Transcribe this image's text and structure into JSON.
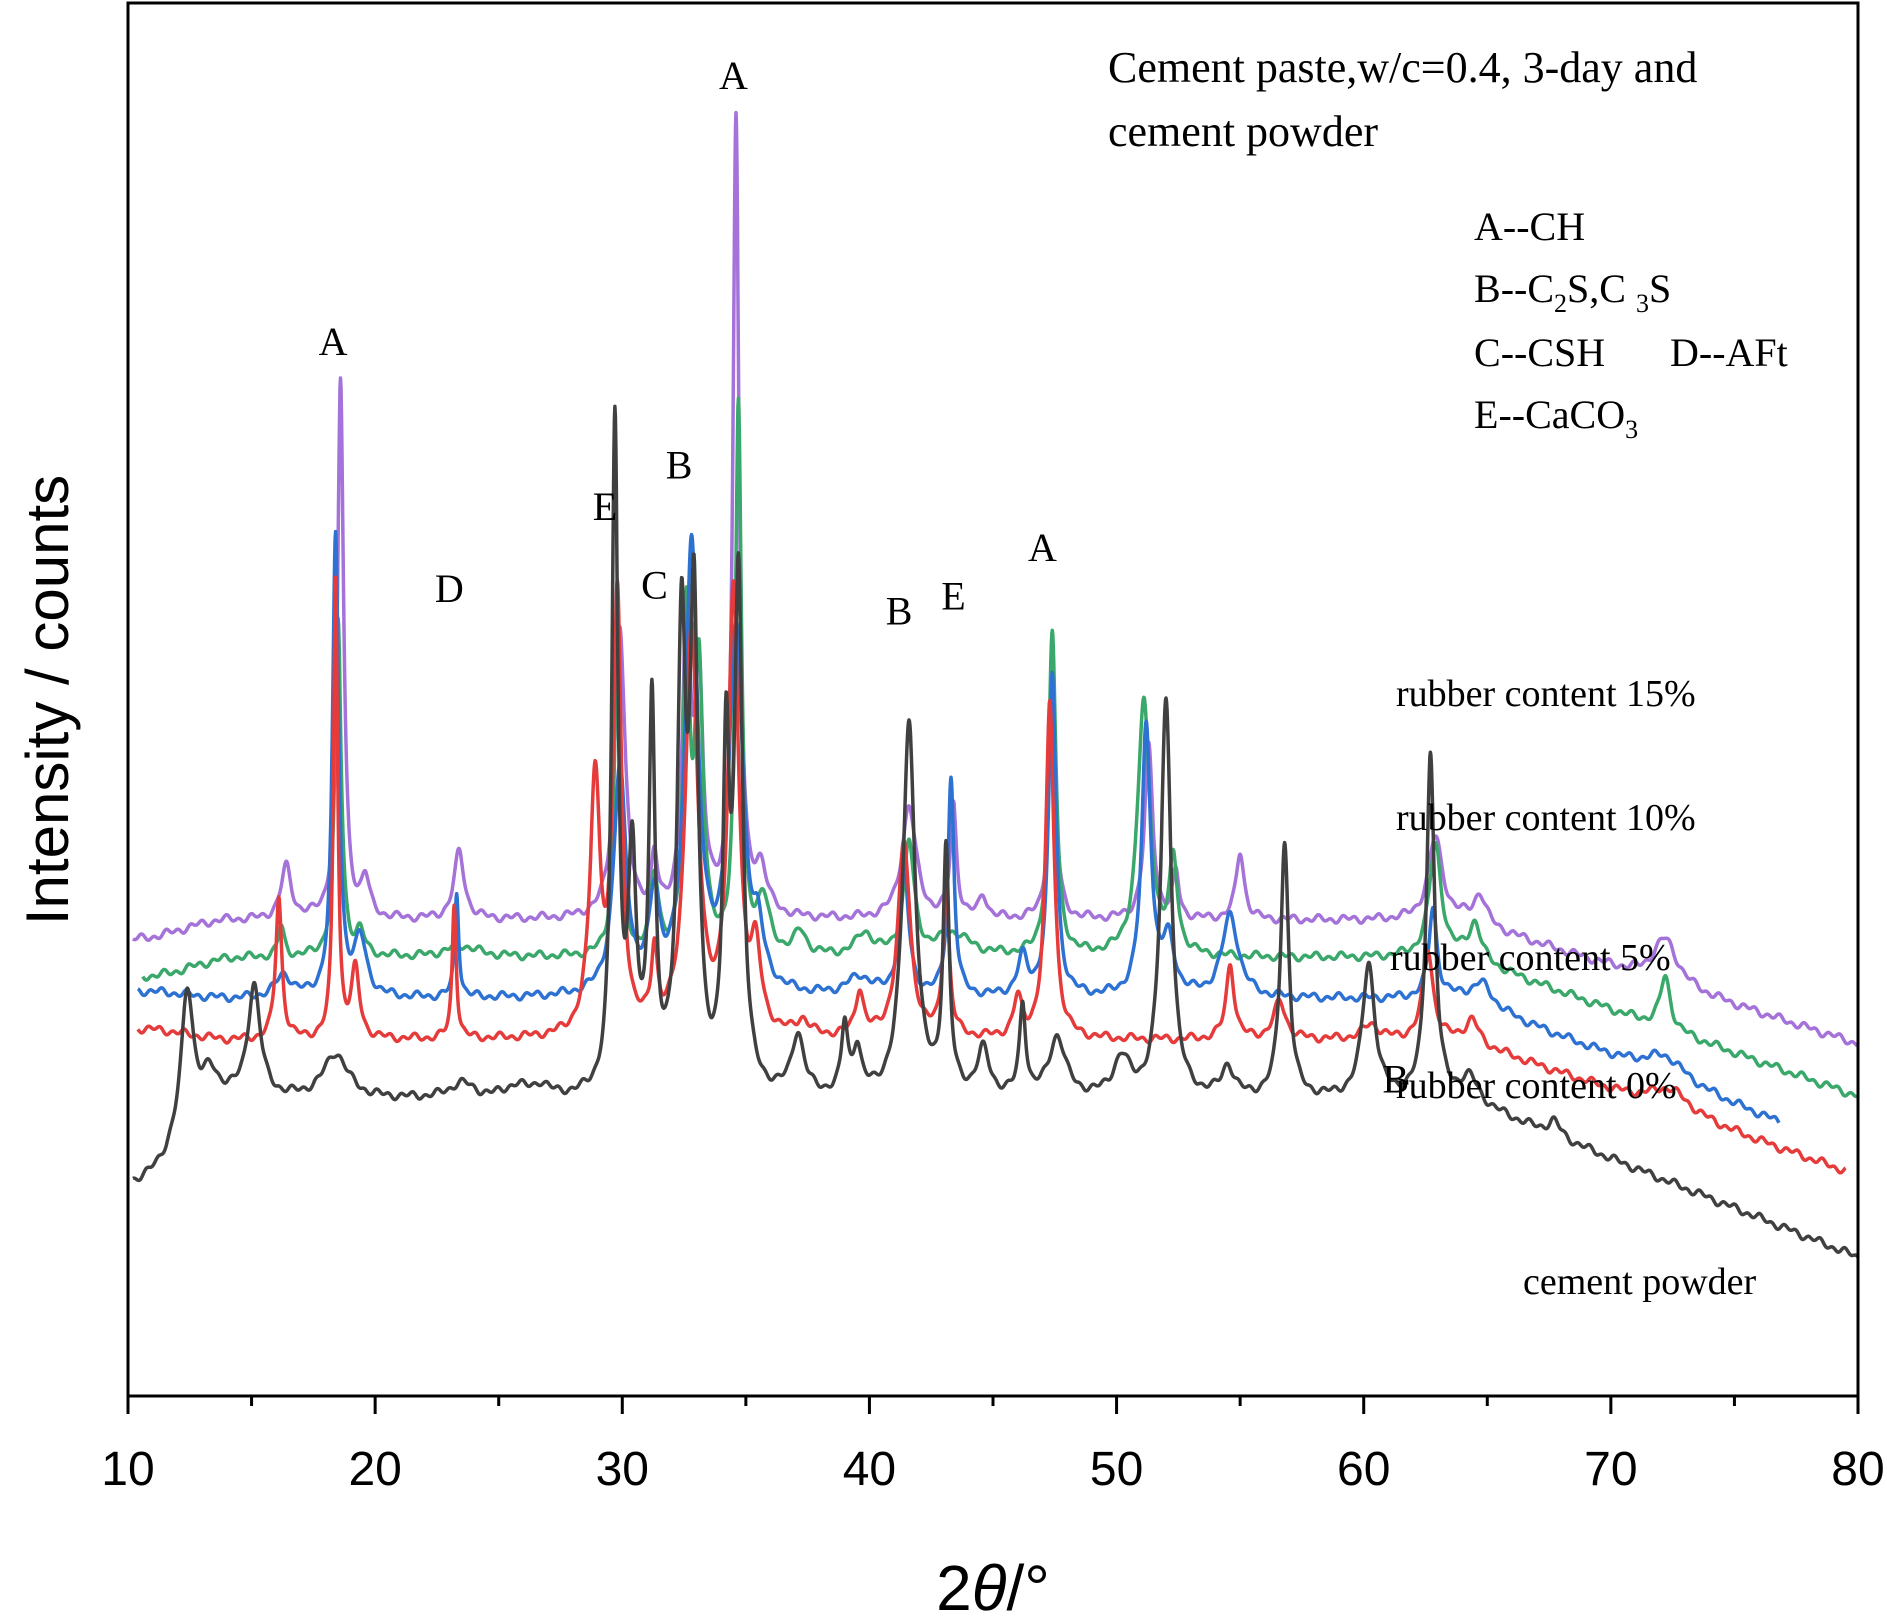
{
  "chart_data": {
    "type": "line",
    "title": "Cement paste,w/c=0.4, 3-day and",
    "title_line2": "cement powder",
    "xlabel_prefix": "2",
    "xlabel_symbol": "θ",
    "xlabel_suffix": "/°",
    "ylabel": "Intensity / counts",
    "xlim": [
      10,
      80
    ],
    "x_ticks": [
      10,
      20,
      30,
      40,
      50,
      60,
      70,
      80
    ],
    "y_ticks_shown": false,
    "grid": false,
    "legend": {
      "placement": "top-right",
      "entries": [
        {
          "letter": "A",
          "phase": "CH"
        },
        {
          "letter": "B",
          "phase": "C2S,C3S"
        },
        {
          "letter": "C",
          "phase": "CSH"
        },
        {
          "letter": "D",
          "phase": "AFt"
        },
        {
          "letter": "E",
          "phase": "CaCO3"
        }
      ]
    },
    "series": [
      {
        "name": "rubber content 15%",
        "color": "#a472d8",
        "baseline": 635,
        "start_x": 10.2,
        "end_x": 80,
        "start_y": 610,
        "end_y": 470,
        "peaks": [
          [
            16.4,
            70,
            0.25
          ],
          [
            18.6,
            720,
            0.15
          ],
          [
            19.6,
            50,
            0.2
          ],
          [
            23.4,
            90,
            0.25
          ],
          [
            29.9,
            390,
            0.25
          ],
          [
            31.3,
            70,
            0.15
          ],
          [
            32.6,
            380,
            0.2
          ],
          [
            33.1,
            300,
            0.2
          ],
          [
            34.6,
            1060,
            0.15
          ],
          [
            35.6,
            60,
            0.3
          ],
          [
            41.6,
            150,
            0.35
          ],
          [
            43.4,
            150,
            0.15
          ],
          [
            44.6,
            30,
            0.2
          ],
          [
            47.4,
            350,
            0.15
          ],
          [
            51.3,
            230,
            0.2
          ],
          [
            52.4,
            60,
            0.15
          ],
          [
            55.0,
            90,
            0.2
          ],
          [
            62.9,
            110,
            0.35
          ],
          [
            64.7,
            40,
            0.3
          ],
          [
            72.2,
            60,
            0.6
          ]
        ]
      },
      {
        "name": "rubber content 10%",
        "color": "#3aa86a",
        "baseline": 585,
        "start_x": 10.6,
        "end_x": 80,
        "start_y": 560,
        "end_y": 400,
        "peaks": [
          [
            16.2,
            40,
            0.15
          ],
          [
            18.5,
            450,
            0.15
          ],
          [
            19.4,
            30,
            0.2
          ],
          [
            23.5,
            15,
            0.8
          ],
          [
            29.8,
            420,
            0.15
          ],
          [
            31.3,
            100,
            0.2
          ],
          [
            32.6,
            430,
            0.15
          ],
          [
            33.1,
            380,
            0.2
          ],
          [
            34.7,
            730,
            0.15
          ],
          [
            35.7,
            70,
            0.3
          ],
          [
            37.2,
            30,
            0.3
          ],
          [
            39.8,
            30,
            0.4
          ],
          [
            41.6,
            150,
            0.25
          ],
          [
            43.4,
            30,
            0.8
          ],
          [
            47.4,
            430,
            0.18
          ],
          [
            51.1,
            340,
            0.3
          ],
          [
            52.3,
            120,
            0.2
          ],
          [
            62.9,
            150,
            0.3
          ],
          [
            64.5,
            50,
            0.3
          ],
          [
            72.2,
            70,
            0.25
          ]
        ]
      },
      {
        "name": "rubber content 5%",
        "color": "#2d72d2",
        "baseline": 530,
        "start_x": 10.4,
        "end_x": 76.8,
        "start_y": 540,
        "end_y": 365,
        "peaks": [
          [
            16.3,
            30,
            0.4
          ],
          [
            18.4,
            615,
            0.15
          ],
          [
            19.4,
            75,
            0.3
          ],
          [
            23.3,
            140,
            0.1
          ],
          [
            29.9,
            300,
            0.3
          ],
          [
            31.3,
            120,
            0.25
          ],
          [
            32.8,
            600,
            0.3
          ],
          [
            34.6,
            480,
            0.35
          ],
          [
            35.5,
            60,
            0.25
          ],
          [
            39.6,
            25,
            0.6
          ],
          [
            41.4,
            170,
            0.22
          ],
          [
            43.3,
            290,
            0.15
          ],
          [
            46.2,
            50,
            0.25
          ],
          [
            47.4,
            430,
            0.18
          ],
          [
            51.2,
            360,
            0.22
          ],
          [
            52.1,
            70,
            0.3
          ],
          [
            54.6,
            110,
            0.4
          ],
          [
            62.8,
            120,
            0.2
          ],
          [
            64.8,
            30,
            0.5
          ],
          [
            72.2,
            30,
            1.0
          ]
        ]
      },
      {
        "name": "rubber content 0%",
        "color": "#e53b3b",
        "baseline": 475,
        "start_x": 10.4,
        "end_x": 79.5,
        "start_y": 490,
        "end_y": 300,
        "peaks": [
          [
            16.1,
            190,
            0.15
          ],
          [
            18.4,
            615,
            0.1
          ],
          [
            19.2,
            90,
            0.2
          ],
          [
            23.2,
            180,
            0.1
          ],
          [
            28.9,
            340,
            0.25
          ],
          [
            29.8,
            580,
            0.2
          ],
          [
            31.3,
            100,
            0.15
          ],
          [
            32.8,
            540,
            0.3
          ],
          [
            34.5,
            585,
            0.25
          ],
          [
            35.4,
            100,
            0.25
          ],
          [
            37.3,
            20,
            0.3
          ],
          [
            39.6,
            60,
            0.2
          ],
          [
            41.4,
            260,
            0.3
          ],
          [
            43.1,
            200,
            0.15
          ],
          [
            46.0,
            50,
            0.2
          ],
          [
            47.3,
            450,
            0.2
          ],
          [
            54.6,
            100,
            0.2
          ],
          [
            56.6,
            50,
            0.3
          ],
          [
            60.3,
            20,
            0.4
          ],
          [
            62.6,
            120,
            0.25
          ],
          [
            64.4,
            30,
            0.3
          ],
          [
            72.4,
            30,
            1.0
          ]
        ]
      },
      {
        "name": "cement powder",
        "color": "#404040",
        "baseline": 395,
        "start_x": 10.2,
        "end_x": 80,
        "start_y": 285,
        "end_y": 185,
        "peaks": [
          [
            12.4,
            190,
            0.3
          ],
          [
            13.3,
            40,
            0.4
          ],
          [
            15.1,
            150,
            0.3
          ],
          [
            18.4,
            60,
            0.6
          ],
          [
            23.5,
            20,
            0.6
          ],
          [
            25.7,
            15,
            0.5
          ],
          [
            26.7,
            15,
            0.4
          ],
          [
            29.7,
            890,
            0.15
          ],
          [
            30.4,
            300,
            0.2
          ],
          [
            31.2,
            510,
            0.15
          ],
          [
            32.4,
            590,
            0.2
          ],
          [
            32.9,
            620,
            0.2
          ],
          [
            34.2,
            420,
            0.15
          ],
          [
            34.7,
            680,
            0.2
          ],
          [
            37.1,
            80,
            0.3
          ],
          [
            39.0,
            90,
            0.15
          ],
          [
            39.5,
            60,
            0.2
          ],
          [
            41.6,
            500,
            0.3
          ],
          [
            43.1,
            320,
            0.15
          ],
          [
            44.6,
            60,
            0.3
          ],
          [
            46.2,
            120,
            0.15
          ],
          [
            47.6,
            80,
            0.4
          ],
          [
            50.2,
            50,
            0.4
          ],
          [
            52.0,
            530,
            0.25
          ],
          [
            54.5,
            40,
            0.3
          ],
          [
            56.8,
            340,
            0.2
          ],
          [
            60.2,
            180,
            0.3
          ],
          [
            62.7,
            460,
            0.2
          ],
          [
            64.3,
            30,
            0.4
          ],
          [
            67.7,
            20,
            0.3
          ]
        ]
      }
    ],
    "series_labels": [
      {
        "text": "rubber content 15%"
      },
      {
        "text": "rubber content 10%"
      },
      {
        "text": "rubber content 5%"
      },
      {
        "text": "rubber content 0%"
      },
      {
        "text": "cement powder"
      }
    ],
    "peak_annotations": [
      {
        "label": "A",
        "x": 18.3,
        "y": 1390
      },
      {
        "label": "D",
        "x": 23.0,
        "y": 1060
      },
      {
        "label": "E",
        "x": 29.3,
        "y": 1170
      },
      {
        "label": "C",
        "x": 31.3,
        "y": 1065
      },
      {
        "label": "B",
        "x": 32.3,
        "y": 1225
      },
      {
        "label": "A",
        "x": 34.5,
        "y": 1745
      },
      {
        "label": "B",
        "x": 41.2,
        "y": 1030
      },
      {
        "label": "E",
        "x": 43.4,
        "y": 1050
      },
      {
        "label": "A",
        "x": 47.0,
        "y": 1115
      },
      {
        "label": "B",
        "x": 61.3,
        "y": 405
      }
    ],
    "ylim": [
      0,
      1860
    ]
  }
}
